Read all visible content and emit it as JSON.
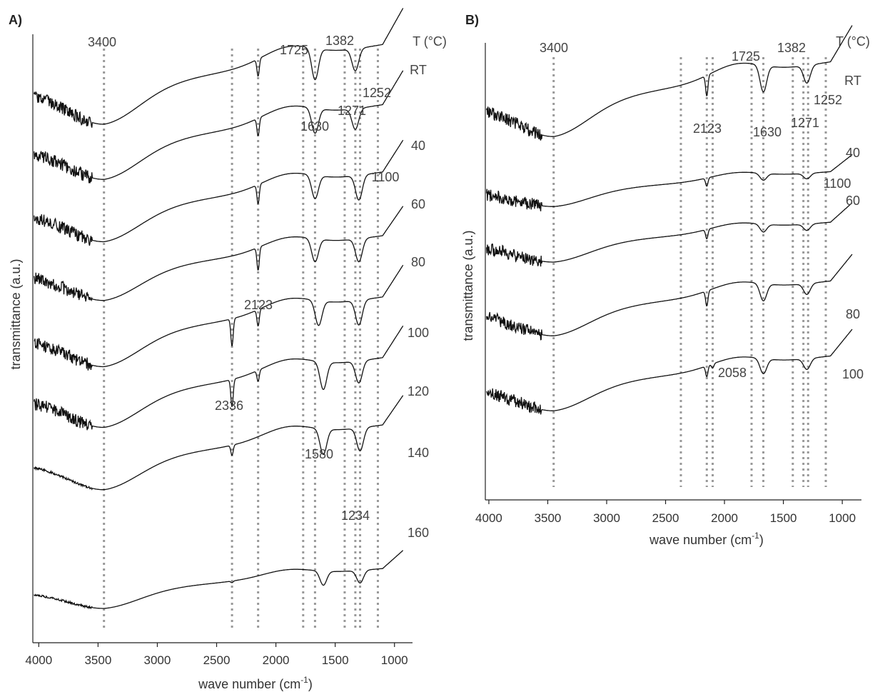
{
  "chart_data": [
    {
      "panel": "A)",
      "type": "line",
      "xlabel": "wave number (cm",
      "xlabel_sup": "-1",
      "xlabel_tail": ")",
      "ylabel": "transmittance (a.u.)",
      "xlim": [
        4050,
        920
      ],
      "x_reversed": true,
      "x_ticks": [
        "4000",
        "3500",
        "3000",
        "2500",
        "2000",
        "1500",
        "1000"
      ],
      "x_tick_values": [
        4000,
        3500,
        3000,
        2500,
        2000,
        1500,
        1000
      ],
      "temperature_header": "T (°C)",
      "guide_lines": [
        3450,
        2370,
        2150,
        1770,
        1670,
        1420,
        1330,
        1290,
        1140
      ],
      "annotations": [
        {
          "text": "3400",
          "x": 3400
        },
        {
          "text": "1725",
          "x": 1725
        },
        {
          "text": "1382",
          "x": 1382
        },
        {
          "text": "1630",
          "x": 1630
        },
        {
          "text": "1271",
          "x": 1271
        },
        {
          "text": "1252",
          "x": 1252
        },
        {
          "text": "1100",
          "x": 1100
        },
        {
          "text": "2123",
          "x": 2123
        },
        {
          "text": "2336",
          "x": 2336
        },
        {
          "text": "1580",
          "x": 1580
        },
        {
          "text": "1234",
          "x": 1234
        }
      ],
      "series": [
        {
          "name": "RT",
          "peaks": {
            "2150": 0.55,
            "1670": 1.0,
            "1330": 0.7
          }
        },
        {
          "name": "40",
          "peaks": {
            "2150": 0.6,
            "1670": 0.85,
            "1330": 0.7
          }
        },
        {
          "name": "60",
          "peaks": {
            "2150": 0.7,
            "1670": 0.85,
            "1300": 0.9
          }
        },
        {
          "name": "80",
          "peaks": {
            "2150": 0.9,
            "1670": 0.9,
            "1300": 0.9
          }
        },
        {
          "name": "100",
          "peaks": {
            "2370": 1.0,
            "2150": 0.6,
            "1640": 0.9,
            "1300": 0.9
          }
        },
        {
          "name": "120",
          "peaks": {
            "2370": 1.0,
            "2150": 0.4,
            "1600": 1.0,
            "1300": 0.8
          }
        },
        {
          "name": "140",
          "peaks": {
            "2370": 0.4,
            "1600": 1.0,
            "1290": 0.9
          }
        },
        {
          "name": "160",
          "peaks": {
            "2370": 0.1,
            "1600": 0.9,
            "1290": 0.8
          }
        }
      ]
    },
    {
      "panel": "B)",
      "type": "line",
      "xlabel": "wave number (cm",
      "xlabel_sup": "-1",
      "xlabel_tail": ")",
      "ylabel": "transmittance (a.u.)",
      "xlim": [
        4030,
        910
      ],
      "x_reversed": true,
      "x_ticks": [
        "4000",
        "3500",
        "3000",
        "2500",
        "2000",
        "1500",
        "1000"
      ],
      "x_tick_values": [
        4000,
        3500,
        3000,
        2500,
        2000,
        1500,
        1000
      ],
      "temperature_header": "T (°C)",
      "guide_lines": [
        3450,
        2370,
        2150,
        2100,
        1770,
        1670,
        1420,
        1330,
        1290,
        1140
      ],
      "annotations": [
        {
          "text": "3400",
          "x": 3400
        },
        {
          "text": "1725",
          "x": 1725
        },
        {
          "text": "1382",
          "x": 1382
        },
        {
          "text": "2123",
          "x": 2123
        },
        {
          "text": "1630",
          "x": 1630
        },
        {
          "text": "1271",
          "x": 1271
        },
        {
          "text": "1252",
          "x": 1252
        },
        {
          "text": "1100",
          "x": 1100
        },
        {
          "text": "2058",
          "x": 2058
        }
      ],
      "series": [
        {
          "name": "RT",
          "peaks": {
            "2150": 0.7,
            "1670": 0.9,
            "1300": 0.6
          }
        },
        {
          "name": "40",
          "peaks": {
            "2150": 0.6,
            "1670": 0.5,
            "1300": 0.4
          }
        },
        {
          "name": "60",
          "peaks": {
            "2150": 0.6,
            "1670": 0.5,
            "1300": 0.4
          }
        },
        {
          "name": "80",
          "peaks": {
            "2150": 0.7,
            "1670": 0.8,
            "1300": 0.5
          }
        },
        {
          "name": "100",
          "peaks": {
            "2150": 0.5,
            "2100": 0.2,
            "1670": 0.7,
            "1300": 0.5
          }
        }
      ]
    }
  ]
}
